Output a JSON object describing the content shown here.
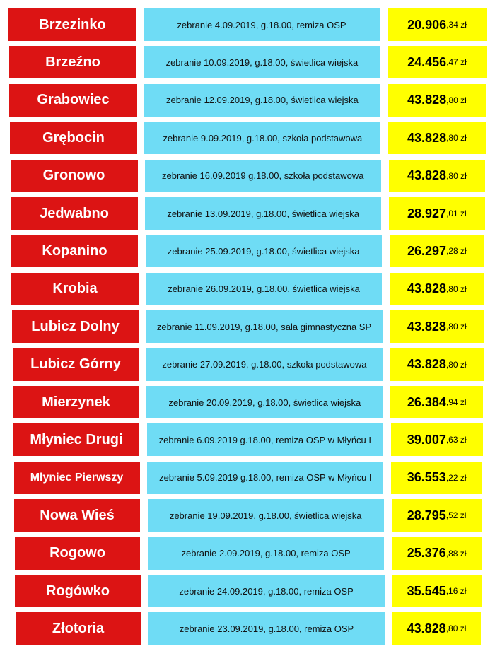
{
  "rows": [
    {
      "name": "Brzezinko",
      "info": "zebranie 4.09.2019, g.18.00, remiza OSP",
      "amount_main": "20.906",
      "amount_rest": ",34 zł"
    },
    {
      "name": "Brzeźno",
      "info": "zebranie 10.09.2019, g.18.00, świetlica wiejska",
      "amount_main": "24.456",
      "amount_rest": ",47 zł"
    },
    {
      "name": "Grabowiec",
      "info": "zebranie 12.09.2019, g.18.00, świetlica wiejska",
      "amount_main": "43.828",
      "amount_rest": ",80 zł"
    },
    {
      "name": "Grębocin",
      "info": "zebranie 9.09.2019, g.18.00, szkoła podstawowa",
      "amount_main": "43.828",
      "amount_rest": ",80 zł"
    },
    {
      "name": "Gronowo",
      "info": "zebranie 16.09.2019 g.18.00, szkoła podstawowa",
      "amount_main": "43.828",
      "amount_rest": ",80 zł"
    },
    {
      "name": "Jedwabno",
      "info": "zebranie 13.09.2019, g.18.00, świetlica wiejska",
      "amount_main": "28.927",
      "amount_rest": ",01 zł"
    },
    {
      "name": "Kopanino",
      "info": "zebranie 25.09.2019, g.18.00, świetlica wiejska",
      "amount_main": "26.297",
      "amount_rest": ",28 zł"
    },
    {
      "name": "Krobia",
      "info": "zebranie 26.09.2019, g.18.00, świetlica wiejska",
      "amount_main": "43.828",
      "amount_rest": ",80 zł"
    },
    {
      "name": "Lubicz Dolny",
      "info": "zebranie 11.09.2019, g.18.00, sala gimnastyczna SP",
      "amount_main": "43.828",
      "amount_rest": ",80 zł"
    },
    {
      "name": "Lubicz Górny",
      "info": "zebranie 27.09.2019, g.18.00, szkoła podstawowa",
      "amount_main": "43.828",
      "amount_rest": ",80 zł"
    },
    {
      "name": "Mierzynek",
      "info": "zebranie 20.09.2019, g.18.00, świetlica wiejska",
      "amount_main": "26.384",
      "amount_rest": ",94 zł"
    },
    {
      "name": "Młyniec Drugi",
      "info": "zebranie 6.09.2019 g.18.00, remiza OSP w Młyńcu I",
      "amount_main": "39.007",
      "amount_rest": ",63 zł"
    },
    {
      "name": "Młyniec Pierwszy",
      "info": "zebranie 5.09.2019 g.18.00, remiza OSP w Młyńcu I",
      "amount_main": "36.553",
      "amount_rest": ",22 zł"
    },
    {
      "name": "Nowa Wieś",
      "info": "zebranie 19.09.2019, g.18.00, świetlica wiejska",
      "amount_main": "28.795",
      "amount_rest": ",52 zł"
    },
    {
      "name": "Rogowo",
      "info": "zebranie 2.09.2019, g.18.00, remiza OSP",
      "amount_main": "25.376",
      "amount_rest": ",88 zł"
    },
    {
      "name": "Rogówko",
      "info": "zebranie 24.09.2019, g.18.00, remiza OSP",
      "amount_main": "35.545",
      "amount_rest": ",16 zł"
    },
    {
      "name": "Złotoria",
      "info": "zebranie 23.09.2019, g.18.00, remiza OSP",
      "amount_main": "43.828",
      "amount_rest": ",80 zł"
    }
  ]
}
